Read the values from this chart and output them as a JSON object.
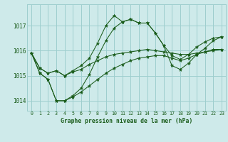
{
  "title": "Graphe pression niveau de la mer (hPa)",
  "bg_color": "#ceeaea",
  "grid_color": "#9ecece",
  "line_color": "#1a5c1a",
  "xlim": [
    -0.5,
    23.5
  ],
  "ylim": [
    1013.6,
    1017.85
  ],
  "yticks": [
    1014,
    1015,
    1016,
    1017
  ],
  "xticks": [
    0,
    1,
    2,
    3,
    4,
    5,
    6,
    7,
    8,
    9,
    10,
    11,
    12,
    13,
    14,
    15,
    16,
    17,
    18,
    19,
    20,
    21,
    22,
    23
  ],
  "series": [
    [
      1015.9,
      1015.3,
      1015.1,
      1015.2,
      1015.0,
      1015.2,
      1015.4,
      1015.7,
      1016.3,
      1017.0,
      1017.4,
      1017.15,
      1017.25,
      1017.1,
      1017.1,
      1016.7,
      1016.2,
      1015.8,
      1015.65,
      1015.85,
      1016.15,
      1016.35,
      1016.5,
      1016.55
    ],
    [
      1015.9,
      1015.3,
      1015.1,
      1015.2,
      1015.0,
      1015.15,
      1015.25,
      1015.45,
      1015.6,
      1015.75,
      1015.85,
      1015.9,
      1015.95,
      1016.0,
      1016.05,
      1016.0,
      1015.95,
      1015.9,
      1015.85,
      1015.85,
      1015.9,
      1015.95,
      1016.0,
      1016.05
    ],
    [
      1015.9,
      1015.1,
      1014.85,
      1014.0,
      1014.0,
      1014.15,
      1014.35,
      1014.6,
      1014.85,
      1015.1,
      1015.3,
      1015.45,
      1015.6,
      1015.7,
      1015.75,
      1015.8,
      1015.8,
      1015.7,
      1015.6,
      1015.7,
      1015.85,
      1015.95,
      1016.05,
      1016.05
    ],
    [
      1015.9,
      1015.1,
      1014.85,
      1014.0,
      1014.0,
      1014.2,
      1014.5,
      1015.05,
      1015.75,
      1016.4,
      1016.9,
      1017.15,
      1017.25,
      1017.1,
      1017.1,
      1016.7,
      1016.2,
      1015.4,
      1015.25,
      1015.5,
      1015.85,
      1016.1,
      1016.4,
      1016.55
    ]
  ]
}
